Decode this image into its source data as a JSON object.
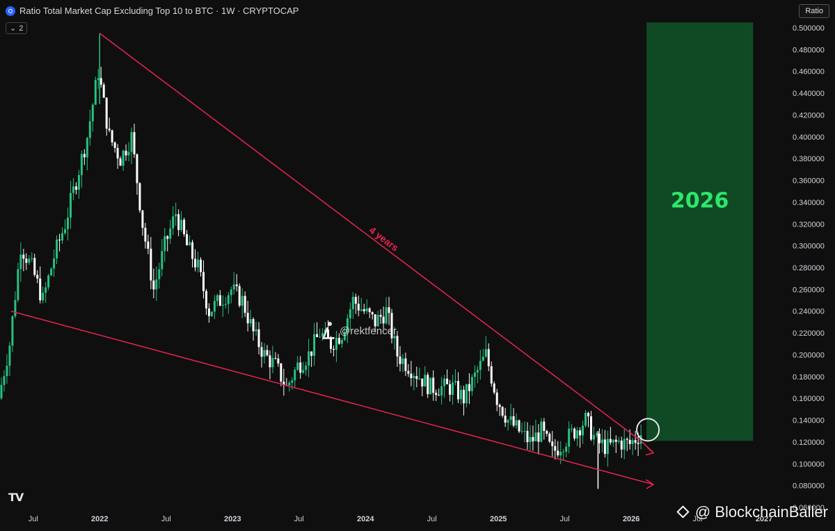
{
  "header": {
    "title": "Ratio Total Market Cap Excluding Top 10 to BTC · 1W · CRYPTOCAP",
    "indicator_count": "2",
    "scale_button": "Ratio"
  },
  "watermarks": {
    "author": "@rektfencer",
    "channel": "@ BlockchainBaller",
    "platform_logo": "TV"
  },
  "colors": {
    "background": "#0f0f0f",
    "candle_up": "#26c281",
    "candle_down": "#ffffff",
    "trendline": "#e8244f",
    "target_box": "#0f4a25",
    "target_text": "#2ee66b"
  },
  "chart_data": {
    "type": "candlestick",
    "title": "Ratio Total Market Cap Excluding Top 10 to BTC · 1W · CRYPTOCAP",
    "x_ticks": [
      "Jul",
      "2022",
      "Jul",
      "2023",
      "Jul",
      "2024",
      "Jul",
      "2025",
      "Jul",
      "2026",
      "Jul",
      "2027"
    ],
    "x_tick_dates": [
      "2021-07",
      "2022-01",
      "2022-07",
      "2023-01",
      "2023-07",
      "2024-01",
      "2024-07",
      "2025-01",
      "2025-07",
      "2026-01",
      "2026-07",
      "2027-01"
    ],
    "y_ticks": [
      "0.500000",
      "0.480000",
      "0.460000",
      "0.440000",
      "0.420000",
      "0.400000",
      "0.380000",
      "0.360000",
      "0.340000",
      "0.320000",
      "0.300000",
      "0.280000",
      "0.260000",
      "0.240000",
      "0.220000",
      "0.200000",
      "0.180000",
      "0.160000",
      "0.140000",
      "0.120000",
      "0.100000",
      "0.080000",
      "0.060000"
    ],
    "ylim": [
      0.06,
      0.5
    ],
    "xlim": [
      "2021-04",
      "2027-03"
    ],
    "grid": false,
    "legend": "none",
    "series_close": [
      [
        "2021-04",
        0.16
      ],
      [
        "2021-05",
        0.21
      ],
      [
        "2021-06",
        0.3
      ],
      [
        "2021-07",
        0.28
      ],
      [
        "2021-08",
        0.25
      ],
      [
        "2021-09",
        0.29
      ],
      [
        "2021-10",
        0.32
      ],
      [
        "2021-11",
        0.36
      ],
      [
        "2021-12",
        0.4
      ],
      [
        "2022-01",
        0.46
      ],
      [
        "2022-02",
        0.4
      ],
      [
        "2022-03",
        0.38
      ],
      [
        "2022-04",
        0.4
      ],
      [
        "2022-05",
        0.32
      ],
      [
        "2022-06",
        0.26
      ],
      [
        "2022-07",
        0.3
      ],
      [
        "2022-08",
        0.33
      ],
      [
        "2022-09",
        0.3
      ],
      [
        "2022-10",
        0.28
      ],
      [
        "2022-11",
        0.24
      ],
      [
        "2022-12",
        0.25
      ],
      [
        "2023-01",
        0.26
      ],
      [
        "2023-02",
        0.25
      ],
      [
        "2023-03",
        0.22
      ],
      [
        "2023-04",
        0.2
      ],
      [
        "2023-05",
        0.19
      ],
      [
        "2023-06",
        0.17
      ],
      [
        "2023-07",
        0.19
      ],
      [
        "2023-08",
        0.2
      ],
      [
        "2023-09",
        0.22
      ],
      [
        "2023-10",
        0.21
      ],
      [
        "2023-11",
        0.22
      ],
      [
        "2023-12",
        0.25
      ],
      [
        "2024-01",
        0.24
      ],
      [
        "2024-02",
        0.23
      ],
      [
        "2024-03",
        0.24
      ],
      [
        "2024-04",
        0.2
      ],
      [
        "2024-05",
        0.19
      ],
      [
        "2024-06",
        0.18
      ],
      [
        "2024-07",
        0.17
      ],
      [
        "2024-08",
        0.17
      ],
      [
        "2024-09",
        0.17
      ],
      [
        "2024-10",
        0.16
      ],
      [
        "2024-11",
        0.18
      ],
      [
        "2024-12",
        0.2
      ],
      [
        "2025-01",
        0.16
      ],
      [
        "2025-02",
        0.14
      ],
      [
        "2025-03",
        0.13
      ],
      [
        "2025-04",
        0.12
      ],
      [
        "2025-05",
        0.13
      ],
      [
        "2025-06",
        0.11
      ],
      [
        "2025-07",
        0.12
      ],
      [
        "2025-08",
        0.13
      ],
      [
        "2025-09",
        0.14
      ],
      [
        "2025-10",
        0.12
      ],
      [
        "2025-11",
        0.115
      ],
      [
        "2025-12",
        0.12
      ],
      [
        "2026-01",
        0.118
      ],
      [
        "2026-02",
        0.128
      ]
    ],
    "notable_points": {
      "peak": [
        "2022-01",
        0.495
      ],
      "wick_low": [
        "2025-10",
        0.077
      ],
      "last": [
        "2026-02",
        0.128
      ]
    },
    "annotations": {
      "upper_trendline": {
        "from": [
          "2022-01",
          0.495
        ],
        "to": [
          "2026-02",
          0.12
        ],
        "label": "4 years"
      },
      "lower_trendline": {
        "from": [
          "2021-05",
          0.24
        ],
        "to": [
          "2026-03",
          0.081
        ]
      },
      "upper_arrow_end": [
        "2026-03",
        0.11
      ],
      "breakout_circle": [
        "2026-02",
        0.128
      ],
      "target_box": {
        "x_from": "2026-02",
        "x_to": "2026-12",
        "y_from": 0.121,
        "y_to": 0.505,
        "label": "2026"
      }
    }
  }
}
